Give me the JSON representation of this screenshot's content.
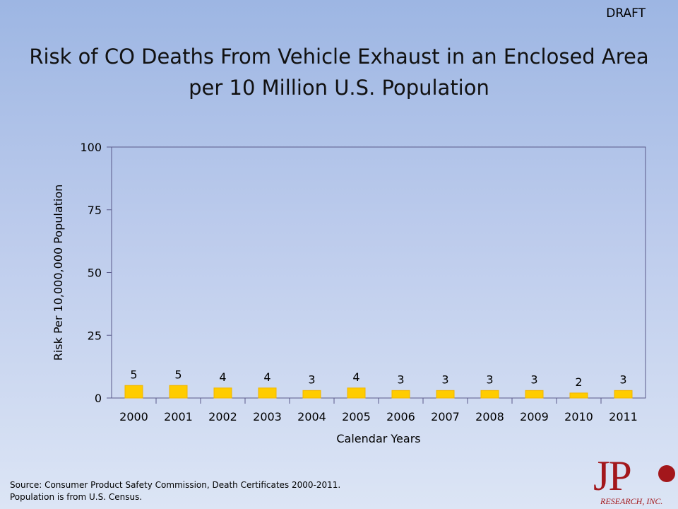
{
  "slide": {
    "draft_label": "DRAFT",
    "title_line1": "Risk of CO Deaths From Vehicle Exhaust in an Enclosed Area",
    "title_line2": "per 10 Million U.S. Population",
    "source_line1": "Source: Consumer Product Safety Commission, Death Certificates 2000-2011.",
    "source_line2": "Population is from U.S. Census.",
    "logo_text": "JP",
    "logo_subtext": "RESEARCH, INC."
  },
  "colors": {
    "bar": "#ffcc00",
    "bar_edge": "#f2b600",
    "axis": "#5a5a8a",
    "logo": "#a3171b"
  },
  "chart_data": {
    "type": "bar",
    "categories": [
      "2000",
      "2001",
      "2002",
      "2003",
      "2004",
      "2005",
      "2006",
      "2007",
      "2008",
      "2009",
      "2010",
      "2011"
    ],
    "values": [
      5,
      5,
      4,
      4,
      3,
      4,
      3,
      3,
      3,
      3,
      2,
      3
    ],
    "data_labels": [
      "5",
      "5",
      "4",
      "4",
      "3",
      "4",
      "3",
      "3",
      "3",
      "3",
      "2",
      "3"
    ],
    "xlabel": "Calendar Years",
    "ylabel": "Risk Per 10,000,000 Population",
    "ylim": [
      0,
      100
    ],
    "yticks": [
      0,
      25,
      50,
      75,
      100
    ],
    "grid": false,
    "legend": "none"
  }
}
